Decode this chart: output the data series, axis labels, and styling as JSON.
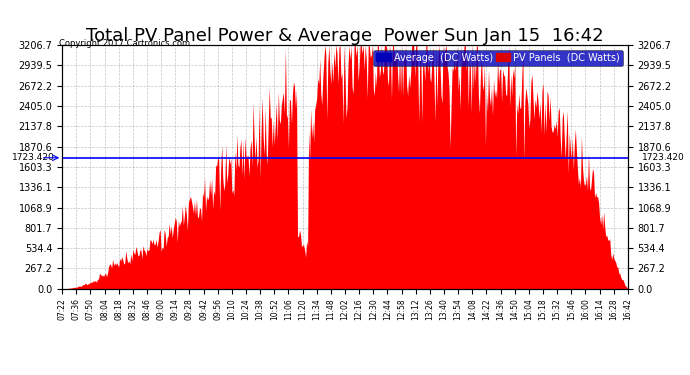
{
  "title": "Total PV Panel Power & Average  Power Sun Jan 15  16:42",
  "copyright": "Copyright 2017 Cartronics.com",
  "average_value": 1723.42,
  "average_label": "1723.420",
  "ymax": 3206.7,
  "ymin": 0.0,
  "yticks": [
    0.0,
    267.2,
    534.4,
    801.7,
    1068.9,
    1336.1,
    1603.3,
    1870.6,
    2137.8,
    2405.0,
    2672.2,
    2939.5,
    3206.7
  ],
  "legend_avg_color": "#0000bb",
  "legend_pv_color": "#dd0000",
  "area_color": "#ff0000",
  "background_color": "#ffffff",
  "grid_color": "#aaaaaa",
  "avg_line_color": "#0000ff",
  "title_fontsize": 13,
  "tick_labels": [
    "07:22",
    "07:36",
    "07:50",
    "08:04",
    "08:18",
    "08:32",
    "08:46",
    "09:00",
    "09:14",
    "09:28",
    "09:42",
    "09:56",
    "10:10",
    "10:24",
    "10:38",
    "10:52",
    "11:06",
    "11:20",
    "11:34",
    "11:48",
    "12:02",
    "12:16",
    "12:30",
    "12:44",
    "12:58",
    "13:12",
    "13:26",
    "13:40",
    "13:54",
    "14:08",
    "14:22",
    "14:36",
    "14:50",
    "15:04",
    "15:18",
    "15:32",
    "15:46",
    "16:00",
    "16:14",
    "16:28",
    "16:42"
  ]
}
